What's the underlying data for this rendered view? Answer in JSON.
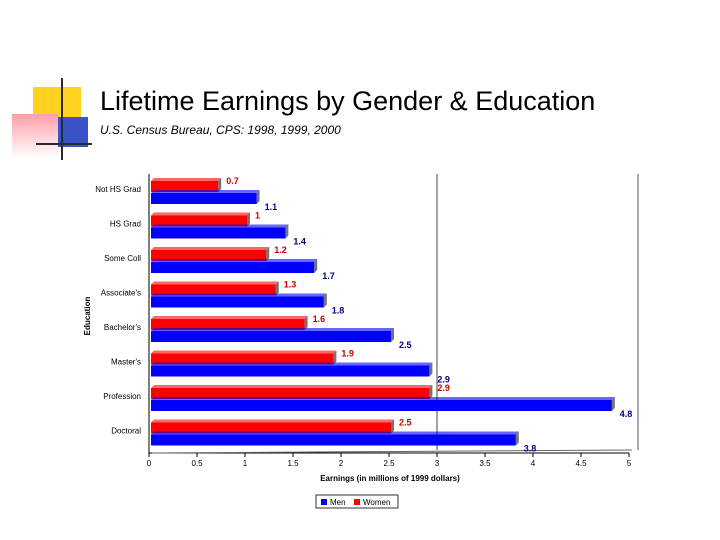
{
  "slide": {
    "title": "Lifetime Earnings by Gender & Education",
    "subtitle": "U.S. Census Bureau, CPS: 1998, 1999, 2000"
  },
  "chart_data": {
    "type": "bar",
    "orientation": "horizontal",
    "categories": [
      "Not HS Grad",
      "HS Grad",
      "Some Coll",
      "Associate's",
      "Bachelor's",
      "Master's",
      "Profession",
      "Doctoral"
    ],
    "series": [
      {
        "name": "Women",
        "color": "#ff0000",
        "label_color": "#cc0000",
        "values": [
          0.7,
          1,
          1.2,
          1.3,
          1.6,
          1.9,
          2.9,
          2.5
        ]
      },
      {
        "name": "Men",
        "color": "#0000ff",
        "label_color": "#000080",
        "values": [
          1.1,
          1.4,
          1.7,
          1.8,
          2.5,
          2.9,
          4.8,
          3.8
        ]
      }
    ],
    "xlabel": "Earnings (in millions of 1999 dollars)",
    "ylabel": "Education",
    "xlim": [
      0,
      5
    ],
    "xticks": [
      "0",
      "0.5",
      "1",
      "1.5",
      "2",
      "2.5",
      "3",
      "3.5",
      "4",
      "4.5",
      "5"
    ],
    "legend_position": "bottom",
    "legend": [
      "Men",
      "Women"
    ],
    "grid": false
  }
}
